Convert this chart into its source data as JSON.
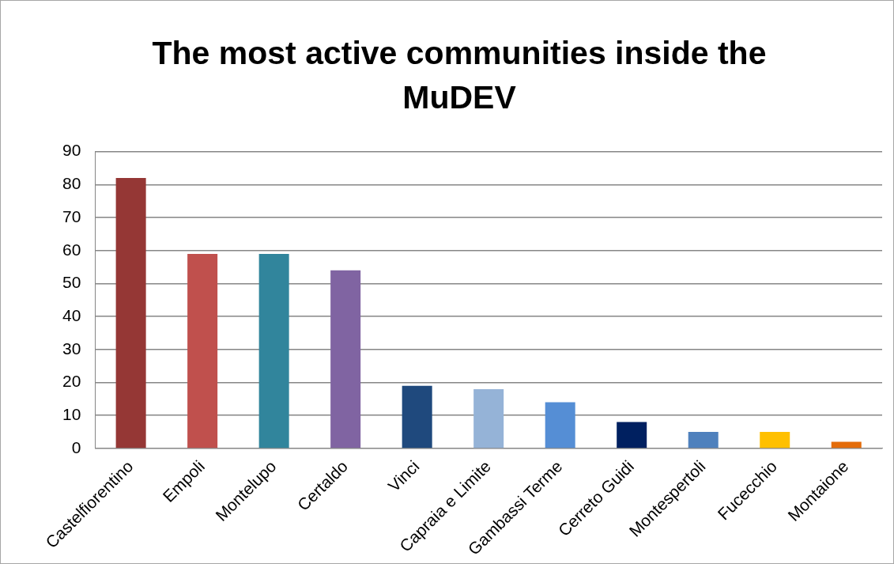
{
  "chart_data": {
    "type": "bar",
    "title": "The most active communities inside the MuDEV",
    "categories": [
      "Castelfiorentino",
      "Empoli",
      "Montelupo",
      "Certaldo",
      "Vinci",
      "Capraia e Limite",
      "Gambassi Terme",
      "Cerreto Guidi",
      "Montespertoli",
      "Fucecchio",
      "Montaione"
    ],
    "values": [
      82,
      59,
      59,
      54,
      19,
      18,
      14,
      8,
      5,
      5,
      2
    ],
    "colors": [
      "#953735",
      "#c0504d",
      "#31859c",
      "#8064a2",
      "#1f497d",
      "#95b3d7",
      "#558ed5",
      "#002060",
      "#4f81bd",
      "#ffc000",
      "#e46c0a"
    ],
    "ylim": [
      0,
      90
    ],
    "yticks": [
      0,
      10,
      20,
      30,
      40,
      50,
      60,
      70,
      80,
      90
    ],
    "grid": "y",
    "legend": false
  }
}
